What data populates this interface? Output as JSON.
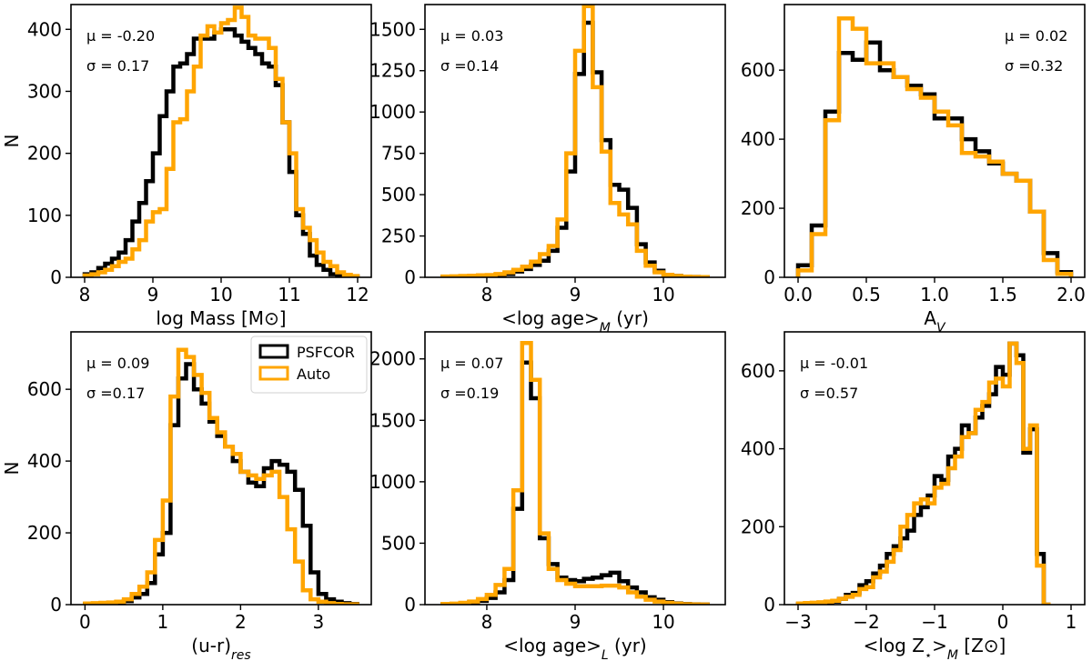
{
  "colors": {
    "psfcor": "#000000",
    "auto": "#ffa500",
    "frame": "#000000"
  },
  "legend": {
    "entries": [
      "PSFCOR",
      "Auto"
    ],
    "location": "upper-right of panel 4"
  },
  "chart_data": [
    {
      "type": "step-histogram",
      "xlabel": "log Mass [M⊙]",
      "ylabel": "N",
      "xlim": [
        7.8,
        12.2
      ],
      "ylim": [
        0,
        440
      ],
      "xticks": [
        8,
        9,
        10,
        11,
        12
      ],
      "xtick_labels": [
        "8",
        "9",
        "10",
        "11",
        "12"
      ],
      "yticks": [
        0,
        100,
        200,
        300,
        400
      ],
      "ytick_labels": [
        "0",
        "100",
        "200",
        "300",
        "400"
      ],
      "annot_pos": "left",
      "annotations": {
        "mu": "μ = -0.20",
        "sigma": "σ = 0.17"
      },
      "series": [
        {
          "name": "PSFCOR",
          "edges": [
            8.0,
            8.1,
            8.2,
            8.3,
            8.4,
            8.5,
            8.6,
            8.7,
            8.8,
            8.9,
            9.0,
            9.1,
            9.2,
            9.3,
            9.4,
            9.5,
            9.6,
            9.7,
            9.8,
            9.9,
            10.0,
            10.1,
            10.2,
            10.3,
            10.4,
            10.5,
            10.6,
            10.7,
            10.8,
            10.9,
            11.0,
            11.1,
            11.2,
            11.3,
            11.4,
            11.5,
            11.6,
            11.7,
            11.8,
            11.9,
            12.0
          ],
          "values": [
            5,
            8,
            15,
            22,
            30,
            40,
            60,
            90,
            120,
            155,
            200,
            260,
            300,
            340,
            345,
            360,
            385,
            385,
            385,
            395,
            400,
            400,
            390,
            380,
            370,
            360,
            345,
            340,
            310,
            250,
            170,
            100,
            70,
            35,
            20,
            12,
            5,
            3,
            2,
            1
          ]
        },
        {
          "name": "Auto",
          "edges": [
            8.0,
            8.1,
            8.2,
            8.3,
            8.4,
            8.5,
            8.6,
            8.7,
            8.8,
            8.9,
            9.0,
            9.1,
            9.2,
            9.3,
            9.4,
            9.5,
            9.6,
            9.7,
            9.8,
            9.9,
            10.0,
            10.1,
            10.2,
            10.3,
            10.4,
            10.5,
            10.6,
            10.7,
            10.8,
            10.9,
            11.0,
            11.1,
            11.2,
            11.3,
            11.4,
            11.5,
            11.6,
            11.7,
            11.8,
            11.9,
            12.0
          ],
          "values": [
            3,
            5,
            8,
            12,
            18,
            25,
            30,
            45,
            60,
            90,
            105,
            110,
            175,
            250,
            255,
            300,
            340,
            390,
            405,
            395,
            410,
            415,
            435,
            420,
            390,
            385,
            385,
            370,
            320,
            250,
            200,
            110,
            80,
            60,
            40,
            25,
            18,
            8,
            4,
            2
          ]
        }
      ]
    },
    {
      "type": "step-histogram",
      "xlabel": "<log age>M (yr)",
      "xlabel_main": "<log age>",
      "xlabel_sub": "M",
      "xlabel_tail": " (yr)",
      "ylabel": "",
      "xlim": [
        7.3,
        10.7
      ],
      "ylim": [
        0,
        1650
      ],
      "xticks": [
        8,
        9,
        10
      ],
      "xtick_labels": [
        "8",
        "9",
        "10"
      ],
      "yticks": [
        0,
        250,
        500,
        750,
        1000,
        1250,
        1500
      ],
      "ytick_labels": [
        "0",
        "250",
        "500",
        "750",
        "1000",
        "1250",
        "1500"
      ],
      "annot_pos": "left",
      "annotations": {
        "mu": "μ = 0.03",
        "sigma": "σ =0.14"
      },
      "series": [
        {
          "name": "PSFCOR",
          "edges": [
            7.5,
            7.6,
            7.7,
            7.8,
            7.9,
            8.0,
            8.1,
            8.2,
            8.3,
            8.4,
            8.5,
            8.6,
            8.7,
            8.8,
            8.9,
            9.0,
            9.1,
            9.2,
            9.3,
            9.4,
            9.5,
            9.6,
            9.7,
            9.8,
            9.9,
            10.0,
            10.1,
            10.2,
            10.3,
            10.4,
            10.5
          ],
          "values": [
            3,
            4,
            5,
            6,
            8,
            10,
            15,
            20,
            35,
            50,
            75,
            100,
            160,
            300,
            640,
            1230,
            1540,
            1240,
            830,
            560,
            530,
            420,
            200,
            90,
            40,
            15,
            8,
            4,
            2,
            1
          ]
        },
        {
          "name": "Auto",
          "edges": [
            7.5,
            7.6,
            7.7,
            7.8,
            7.9,
            8.0,
            8.1,
            8.2,
            8.3,
            8.4,
            8.5,
            8.6,
            8.7,
            8.8,
            8.9,
            9.0,
            9.1,
            9.2,
            9.3,
            9.4,
            9.5,
            9.6,
            9.7,
            9.8,
            9.9,
            10.0,
            10.1,
            10.2,
            10.3,
            10.4,
            10.5
          ],
          "values": [
            5,
            6,
            8,
            10,
            12,
            14,
            20,
            30,
            45,
            65,
            95,
            140,
            190,
            350,
            750,
            1370,
            1640,
            1150,
            760,
            450,
            380,
            320,
            160,
            70,
            30,
            15,
            8,
            4,
            2,
            1
          ]
        }
      ]
    },
    {
      "type": "step-histogram",
      "xlabel": "AV",
      "xlabel_main": "A",
      "xlabel_sub": "V",
      "xlabel_tail": "",
      "ylabel": "",
      "xlim": [
        -0.1,
        2.1
      ],
      "ylim": [
        0,
        790
      ],
      "xticks": [
        0,
        0.5,
        1.0,
        1.5,
        2.0
      ],
      "xtick_labels": [
        "0.0",
        "0.5",
        "1.0",
        "1.5",
        "2.0"
      ],
      "yticks": [
        0,
        200,
        400,
        600
      ],
      "ytick_labels": [
        "0",
        "200",
        "400",
        "600"
      ],
      "annot_pos": "right",
      "annotations": {
        "mu": "μ = 0.02",
        "sigma": "σ =0.32"
      },
      "series": [
        {
          "name": "PSFCOR",
          "edges": [
            0.0,
            0.1,
            0.2,
            0.3,
            0.4,
            0.5,
            0.6,
            0.7,
            0.8,
            0.9,
            1.0,
            1.1,
            1.2,
            1.3,
            1.4,
            1.5,
            1.6,
            1.7,
            1.8,
            1.9,
            2.0
          ],
          "values": [
            35,
            150,
            480,
            650,
            630,
            680,
            600,
            580,
            555,
            530,
            460,
            460,
            400,
            365,
            330,
            300,
            280,
            190,
            70,
            15
          ]
        },
        {
          "name": "Auto",
          "edges": [
            0.0,
            0.1,
            0.2,
            0.3,
            0.4,
            0.5,
            0.6,
            0.7,
            0.8,
            0.9,
            1.0,
            1.1,
            1.2,
            1.3,
            1.4,
            1.5,
            1.6,
            1.7,
            1.8,
            1.9,
            2.0
          ],
          "values": [
            20,
            125,
            455,
            750,
            720,
            620,
            620,
            580,
            545,
            520,
            480,
            440,
            360,
            350,
            335,
            300,
            280,
            190,
            50,
            10
          ]
        }
      ]
    },
    {
      "type": "step-histogram",
      "xlabel": "(u-r)res",
      "xlabel_main": "(u-r)",
      "xlabel_sub": "res",
      "xlabel_tail": "",
      "ylabel": "N",
      "xlim": [
        -0.18,
        3.68
      ],
      "ylim": [
        0,
        760
      ],
      "xticks": [
        0,
        1,
        2,
        3
      ],
      "xtick_labels": [
        "0",
        "1",
        "2",
        "3"
      ],
      "yticks": [
        0,
        200,
        400,
        600
      ],
      "ytick_labels": [
        "0",
        "200",
        "400",
        "600"
      ],
      "annot_pos": "left",
      "annotations": {
        "mu": "μ = 0.09",
        "sigma": "σ =0.17"
      },
      "legend": true,
      "series": [
        {
          "name": "PSFCOR",
          "edges": [
            0.0,
            0.1,
            0.2,
            0.3,
            0.4,
            0.5,
            0.6,
            0.7,
            0.8,
            0.9,
            1.0,
            1.1,
            1.2,
            1.3,
            1.4,
            1.5,
            1.6,
            1.7,
            1.8,
            1.9,
            2.0,
            2.1,
            2.2,
            2.3,
            2.4,
            2.5,
            2.6,
            2.7,
            2.8,
            2.9,
            3.0,
            3.1,
            3.2,
            3.3,
            3.4,
            3.5
          ],
          "values": [
            2,
            3,
            4,
            5,
            6,
            10,
            20,
            30,
            60,
            140,
            200,
            500,
            630,
            670,
            600,
            560,
            510,
            470,
            440,
            400,
            370,
            340,
            330,
            380,
            400,
            390,
            370,
            320,
            220,
            90,
            30,
            15,
            8,
            4,
            2
          ]
        },
        {
          "name": "Auto",
          "edges": [
            0.0,
            0.1,
            0.2,
            0.3,
            0.4,
            0.5,
            0.6,
            0.7,
            0.8,
            0.9,
            1.0,
            1.1,
            1.2,
            1.3,
            1.4,
            1.5,
            1.6,
            1.7,
            1.8,
            1.9,
            2.0,
            2.1,
            2.2,
            2.3,
            2.4,
            2.5,
            2.6,
            2.7,
            2.8,
            2.9,
            3.0,
            3.1,
            3.2,
            3.3,
            3.4,
            3.5
          ],
          "values": [
            3,
            4,
            5,
            6,
            8,
            15,
            30,
            50,
            90,
            180,
            290,
            580,
            710,
            690,
            640,
            590,
            520,
            480,
            440,
            420,
            370,
            360,
            350,
            360,
            370,
            300,
            210,
            120,
            40,
            15,
            8,
            4,
            2,
            1,
            1
          ]
        }
      ]
    },
    {
      "type": "step-histogram",
      "xlabel": "<log age>L (yr)",
      "xlabel_main": "<log age>",
      "xlabel_sub": "L",
      "xlabel_tail": " (yr)",
      "ylabel": "",
      "xlim": [
        7.3,
        10.7
      ],
      "ylim": [
        0,
        2220
      ],
      "xticks": [
        8,
        9,
        10
      ],
      "xtick_labels": [
        "8",
        "9",
        "10"
      ],
      "yticks": [
        0,
        500,
        1000,
        1500,
        2000
      ],
      "ytick_labels": [
        "0",
        "500",
        "1000",
        "1500",
        "2000"
      ],
      "annot_pos": "left",
      "annotations": {
        "mu": "μ = 0.07",
        "sigma": "σ =0.19"
      },
      "series": [
        {
          "name": "PSFCOR",
          "edges": [
            7.5,
            7.6,
            7.7,
            7.8,
            7.9,
            8.0,
            8.1,
            8.2,
            8.3,
            8.4,
            8.5,
            8.6,
            8.7,
            8.8,
            8.9,
            9.0,
            9.1,
            9.2,
            9.3,
            9.4,
            9.5,
            9.6,
            9.7,
            9.8,
            9.9,
            10.0,
            10.1,
            10.2,
            10.3,
            10.4,
            10.5
          ],
          "values": [
            4,
            6,
            10,
            18,
            30,
            55,
            100,
            200,
            780,
            1970,
            1680,
            540,
            330,
            220,
            200,
            190,
            210,
            220,
            240,
            260,
            190,
            140,
            100,
            60,
            40,
            20,
            10,
            5,
            3,
            2
          ]
        },
        {
          "name": "Auto",
          "edges": [
            7.5,
            7.6,
            7.7,
            7.8,
            7.9,
            8.0,
            8.1,
            8.2,
            8.3,
            8.4,
            8.5,
            8.6,
            8.7,
            8.8,
            8.9,
            9.0,
            9.1,
            9.2,
            9.3,
            9.4,
            9.5,
            9.6,
            9.7,
            9.8,
            9.9,
            10.0,
            10.1,
            10.2,
            10.3,
            10.4,
            10.5
          ],
          "values": [
            5,
            8,
            15,
            25,
            45,
            80,
            160,
            290,
            930,
            2130,
            1830,
            580,
            290,
            200,
            170,
            150,
            150,
            150,
            155,
            155,
            140,
            100,
            65,
            40,
            25,
            15,
            8,
            4,
            2,
            1
          ]
        }
      ]
    },
    {
      "type": "step-histogram",
      "xlabel": "<log Z⋆>M [Z⊙]",
      "xlabel_main": "<log Z",
      "xlabel_star": "⋆",
      "xlabel_mid": ">",
      "xlabel_sub": "M",
      "xlabel_tail": " [Z⊙]",
      "ylabel": "",
      "xlim": [
        -3.2,
        1.2
      ],
      "ylim": [
        0,
        700
      ],
      "xticks": [
        -3,
        -2,
        -1,
        0,
        1
      ],
      "xtick_labels": [
        "−3",
        "−2",
        "−1",
        "0",
        "1"
      ],
      "yticks": [
        0,
        200,
        400,
        600
      ],
      "ytick_labels": [
        "0",
        "200",
        "400",
        "600"
      ],
      "annot_pos": "left",
      "annotations": {
        "mu": "μ = -0.01",
        "sigma": "σ =0.57"
      },
      "series": [
        {
          "name": "PSFCOR",
          "edges": [
            -3.0,
            -2.9,
            -2.8,
            -2.7,
            -2.6,
            -2.5,
            -2.4,
            -2.3,
            -2.2,
            -2.1,
            -2.0,
            -1.9,
            -1.8,
            -1.7,
            -1.6,
            -1.5,
            -1.4,
            -1.3,
            -1.2,
            -1.1,
            -1.0,
            -0.9,
            -0.8,
            -0.7,
            -0.6,
            -0.5,
            -0.4,
            -0.3,
            -0.2,
            -0.1,
            0.0,
            0.1,
            0.2,
            0.3,
            0.4,
            0.5,
            0.6,
            0.7
          ],
          "values": [
            2,
            3,
            4,
            5,
            6,
            8,
            15,
            25,
            30,
            50,
            60,
            80,
            100,
            130,
            150,
            170,
            190,
            230,
            250,
            280,
            330,
            320,
            380,
            400,
            460,
            440,
            480,
            510,
            540,
            610,
            590,
            670,
            640,
            390,
            450,
            130,
            0
          ]
        },
        {
          "name": "Auto",
          "edges": [
            -3.0,
            -2.9,
            -2.8,
            -2.7,
            -2.6,
            -2.5,
            -2.4,
            -2.3,
            -2.2,
            -2.1,
            -2.0,
            -1.9,
            -1.8,
            -1.7,
            -1.6,
            -1.5,
            -1.4,
            -1.3,
            -1.2,
            -1.1,
            -1.0,
            -0.9,
            -0.8,
            -0.7,
            -0.6,
            -0.5,
            -0.4,
            -0.3,
            -0.2,
            -0.1,
            0.0,
            0.1,
            0.2,
            0.3,
            0.4,
            0.5,
            0.6,
            0.7
          ],
          "values": [
            3,
            4,
            5,
            6,
            8,
            10,
            15,
            20,
            25,
            40,
            45,
            70,
            85,
            110,
            140,
            200,
            230,
            260,
            270,
            260,
            300,
            310,
            350,
            380,
            430,
            440,
            500,
            520,
            570,
            580,
            560,
            670,
            620,
            400,
            460,
            100,
            0
          ]
        }
      ]
    }
  ]
}
